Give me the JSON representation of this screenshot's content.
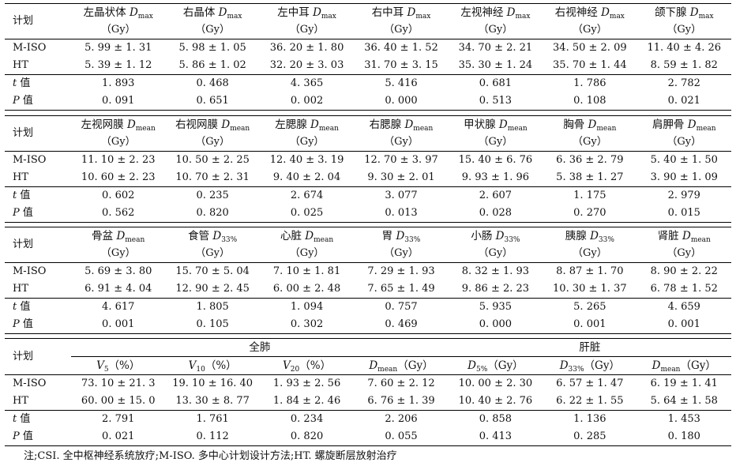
{
  "note": "注;CSI. 全中枢神经系统放疗;M-ISO. 多中心计划设计方法;HT. 螺旋断层放射治疗",
  "labels": {
    "plan": "计划",
    "mrow1": "M-ISO",
    "mrow2": "HT",
    "t": "t",
    "t_suffix": " 值",
    "p": "P",
    "p_suffix": " 值"
  },
  "blocks": [
    {
      "cols": [
        {
          "name": "左晶状体 ",
          "sym": "D",
          "sub": "max",
          "unit": "（Gy）"
        },
        {
          "name": "右晶体 ",
          "sym": "D",
          "sub": "max",
          "unit": "（Gy）"
        },
        {
          "name": "左中耳 ",
          "sym": "D",
          "sub": "max",
          "unit": "（Gy）"
        },
        {
          "name": "右中耳 ",
          "sym": "D",
          "sub": "max",
          "unit": "（Gy）"
        },
        {
          "name": "左视神经 ",
          "sym": "D",
          "sub": "max",
          "unit": "（Gy）"
        },
        {
          "name": "右视神经 ",
          "sym": "D",
          "sub": "max",
          "unit": "（Gy）"
        },
        {
          "name": "颌下腺 ",
          "sym": "D",
          "sub": "max",
          "unit": "（Gy）"
        }
      ],
      "m_iso": [
        "5. 99 ± 1. 31",
        "5. 98 ± 1. 05",
        "36. 20 ± 1. 80",
        "36. 40 ± 1. 52",
        "34. 70 ± 2. 21",
        "34. 50 ± 2. 09",
        "11. 40 ± 4. 26"
      ],
      "ht": [
        "5. 39 ± 1. 12",
        "5. 86 ± 1. 02",
        "32. 20 ± 3. 03",
        "31. 70 ± 3. 15",
        "35. 30 ± 1. 24",
        "35. 70 ± 1. 44",
        "8. 59 ± 1. 82"
      ],
      "t": [
        "1. 893",
        "0. 468",
        "4. 365",
        "5. 416",
        "0. 681",
        "1. 786",
        "2. 782"
      ],
      "p": [
        "0. 091",
        "0. 651",
        "0. 002",
        "0. 000",
        "0. 513",
        "0. 108",
        "0. 021"
      ]
    },
    {
      "cols": [
        {
          "name": "左视网膜 ",
          "sym": "D",
          "sub": "mean",
          "unit": "（Gy）"
        },
        {
          "name": "右视网膜 ",
          "sym": "D",
          "sub": "mean",
          "unit": "（Gy）"
        },
        {
          "name": "左腮腺 ",
          "sym": "D",
          "sub": "mean",
          "unit": "（Gy）"
        },
        {
          "name": "右腮腺 ",
          "sym": "D",
          "sub": "mean",
          "unit": "（Gy）"
        },
        {
          "name": "甲状腺 ",
          "sym": "D",
          "sub": "mean",
          "unit": "（Gy）"
        },
        {
          "name": "胸骨 ",
          "sym": "D",
          "sub": "mean",
          "unit": "（Gy）"
        },
        {
          "name": "肩胛骨 ",
          "sym": "D",
          "sub": "mean",
          "unit": "（Gy）"
        }
      ],
      "m_iso": [
        "11. 10 ± 2. 23",
        "10. 50 ± 2. 25",
        "12. 40 ± 3. 19",
        "12. 70 ± 3. 97",
        "15. 40 ± 6. 76",
        "6. 36 ± 2. 79",
        "5. 40 ± 1. 50"
      ],
      "ht": [
        "10. 60 ± 2. 23",
        "10. 70 ± 2. 31",
        "9. 40 ± 2. 04",
        "9. 30 ± 2. 01",
        "9. 93 ± 1. 96",
        "5. 38 ± 1. 27",
        "3. 90 ± 1. 09"
      ],
      "t": [
        "0. 602",
        "0. 235",
        "2. 674",
        "3. 077",
        "2. 607",
        "1. 175",
        "2. 979"
      ],
      "p": [
        "0. 562",
        "0. 820",
        "0. 025",
        "0. 013",
        "0. 028",
        "0. 270",
        "0. 015"
      ]
    },
    {
      "cols": [
        {
          "name": "骨盆 ",
          "sym": "D",
          "sub": "mean",
          "unit": "（Gy）"
        },
        {
          "name": "食管 ",
          "sym": "D",
          "sub": "33%",
          "unit": "（Gy）"
        },
        {
          "name": "心脏 ",
          "sym": "D",
          "sub": "mean",
          "unit": "（Gy）"
        },
        {
          "name": "胃 ",
          "sym": "D",
          "sub": "33%",
          "unit": "（Gy）"
        },
        {
          "name": "小肠 ",
          "sym": "D",
          "sub": "33%",
          "unit": "（Gy）"
        },
        {
          "name": "胰腺 ",
          "sym": "D",
          "sub": "33%",
          "unit": "（Gy）"
        },
        {
          "name": "肾脏 ",
          "sym": "D",
          "sub": "mean",
          "unit": "（Gy）"
        }
      ],
      "m_iso": [
        "5. 69 ± 3. 80",
        "15. 70 ± 5. 04",
        "7. 10 ± 1. 81",
        "7. 29 ± 1. 93",
        "8. 32 ± 1. 93",
        "8. 87 ± 1. 70",
        "8. 90 ± 2. 22"
      ],
      "ht": [
        "6. 91 ± 4. 04",
        "12. 90 ± 2. 45",
        "6. 00 ± 2. 48",
        "7. 65 ± 1. 49",
        "9. 86 ± 2. 23",
        "10. 30 ± 1. 37",
        "6. 78 ± 1. 52"
      ],
      "t": [
        "4. 617",
        "1. 805",
        "1. 094",
        "0. 757",
        "5. 935",
        "5. 265",
        "4. 659"
      ],
      "p": [
        "0. 001",
        "0. 105",
        "0. 302",
        "0. 469",
        "0. 000",
        "0. 001",
        "0. 001"
      ]
    },
    {
      "groups": [
        "全肺",
        "肝脏"
      ],
      "cols": [
        {
          "sym": "V",
          "sub": "5",
          "unit": "（%）"
        },
        {
          "sym": "V",
          "sub": "10",
          "unit": "（%）"
        },
        {
          "sym": "V",
          "sub": "20",
          "unit": "（%）"
        },
        {
          "sym": "D",
          "sub": "mean",
          "unit": "（Gy）"
        },
        {
          "sym": "D",
          "sub": "5%",
          "unit": "（Gy）"
        },
        {
          "sym": "D",
          "sub": "33%",
          "unit": "（Gy）"
        },
        {
          "sym": "D",
          "sub": "mean",
          "unit": "（Gy）"
        }
      ],
      "m_iso": [
        "73. 10 ± 21. 3",
        "19. 10 ± 16. 40",
        "1. 93 ± 2. 56",
        "7. 60 ± 2. 12",
        "10. 00 ± 2. 30",
        "6. 57 ± 1. 47",
        "6. 19 ± 1. 41"
      ],
      "ht": [
        "60. 00 ± 15. 0",
        "13. 30 ± 8. 77",
        "1. 84 ± 2. 46",
        "6. 76 ± 1. 39",
        "10. 40 ± 2. 76",
        "6. 22 ± 1. 55",
        "5. 64 ± 1. 58"
      ],
      "t": [
        "2. 791",
        "1. 761",
        "0. 234",
        "2. 206",
        "0. 858",
        "1. 136",
        "1. 453"
      ],
      "p": [
        "0. 021",
        "0. 112",
        "0. 820",
        "0. 055",
        "0. 413",
        "0. 285",
        "0. 180"
      ]
    }
  ]
}
